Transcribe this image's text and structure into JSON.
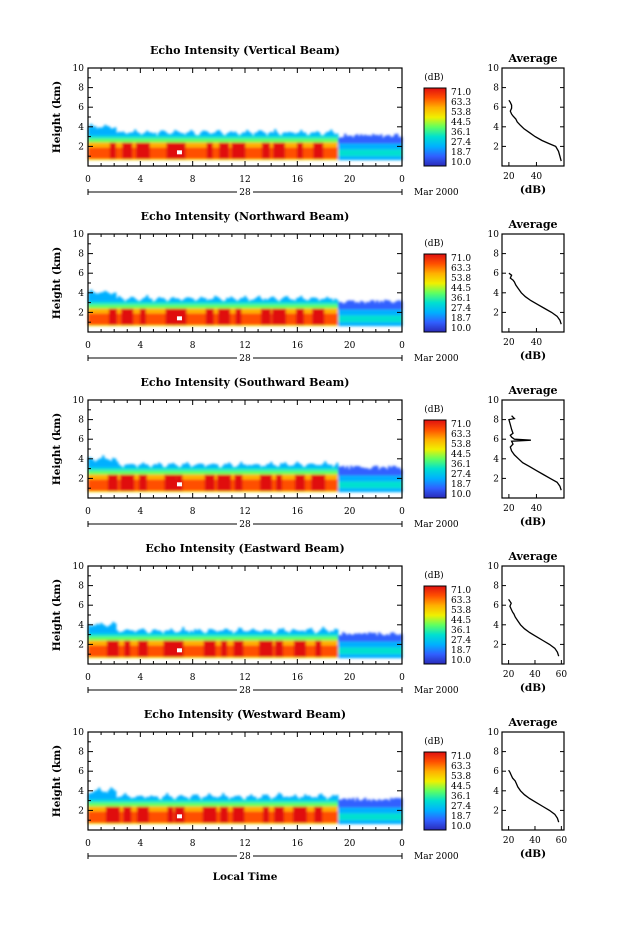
{
  "figure": {
    "xlabel": "Local Time",
    "date_label": "Mar 2000",
    "day_label": "28",
    "time_ticks": [
      "0",
      "4",
      "8",
      "12",
      "16",
      "20",
      "0"
    ]
  },
  "colors": {
    "scale": [
      "#2a2ab8",
      "#3060ff",
      "#00b0ff",
      "#00e0d0",
      "#60ff60",
      "#f0f000",
      "#ffb000",
      "#ff5000",
      "#e01010"
    ]
  },
  "chart_data": [
    {
      "type": "heatmap",
      "title": "Echo Intensity (Vertical Beam)",
      "xlabel": "",
      "ylabel": "Height (km)",
      "x_range_hours": [
        0,
        24
      ],
      "ylim": [
        0,
        10
      ],
      "y_ticks": [
        2,
        4,
        6,
        8,
        10
      ],
      "colorbar": {
        "label": "(dB)",
        "ticks": [
          "71.0",
          "63.3",
          "53.8",
          "44.5",
          "36.1",
          "27.4",
          "18.7",
          "10.0"
        ]
      },
      "average_profile": {
        "title": "Average",
        "xlabel": "(dB)",
        "x_ticks": [
          20,
          40
        ],
        "xlim": [
          15,
          60
        ],
        "ylim": [
          0,
          10
        ],
        "y_ticks": [
          2,
          4,
          6,
          8,
          10
        ],
        "points": [
          [
            58,
            0.5
          ],
          [
            57,
            1.0
          ],
          [
            56,
            1.5
          ],
          [
            54,
            2.0
          ],
          [
            49,
            2.3
          ],
          [
            44,
            2.6
          ],
          [
            39,
            3.0
          ],
          [
            35,
            3.4
          ],
          [
            31,
            3.8
          ],
          [
            28,
            4.2
          ],
          [
            26,
            4.5
          ],
          [
            25,
            4.8
          ],
          [
            23,
            5.1
          ],
          [
            22,
            5.3
          ],
          [
            21,
            5.6
          ],
          [
            22,
            5.9
          ],
          [
            22,
            6.2
          ],
          [
            21,
            6.5
          ],
          [
            20,
            6.7
          ]
        ]
      }
    },
    {
      "type": "heatmap",
      "title": "Echo Intensity (Northward Beam)",
      "xlabel": "",
      "ylabel": "Height (km)",
      "x_range_hours": [
        0,
        24
      ],
      "ylim": [
        0,
        10
      ],
      "y_ticks": [
        2,
        4,
        6,
        8,
        10
      ],
      "colorbar": {
        "label": "(dB)",
        "ticks": [
          "71.0",
          "63.3",
          "53.8",
          "44.5",
          "36.1",
          "27.4",
          "18.7",
          "10.0"
        ]
      },
      "average_profile": {
        "title": "Average",
        "xlabel": "(dB)",
        "x_ticks": [
          20,
          40
        ],
        "xlim": [
          15,
          60
        ],
        "ylim": [
          0,
          10
        ],
        "y_ticks": [
          2,
          4,
          6,
          8,
          10
        ],
        "points": [
          [
            58,
            0.8
          ],
          [
            57,
            1.2
          ],
          [
            55,
            1.6
          ],
          [
            51,
            2.0
          ],
          [
            46,
            2.4
          ],
          [
            41,
            2.8
          ],
          [
            36,
            3.2
          ],
          [
            32,
            3.6
          ],
          [
            29,
            4.0
          ],
          [
            27,
            4.4
          ],
          [
            25,
            4.8
          ],
          [
            24,
            5.1
          ],
          [
            23,
            5.3
          ],
          [
            21,
            5.5
          ],
          [
            22,
            5.8
          ],
          [
            20,
            6.0
          ]
        ]
      }
    },
    {
      "type": "heatmap",
      "title": "Echo Intensity (Southward Beam)",
      "xlabel": "",
      "ylabel": "Height (km)",
      "x_range_hours": [
        0,
        24
      ],
      "ylim": [
        0,
        10
      ],
      "y_ticks": [
        2,
        4,
        6,
        8,
        10
      ],
      "colorbar": {
        "label": "(dB)",
        "ticks": [
          "71.0",
          "63.3",
          "53.8",
          "44.5",
          "36.1",
          "27.4",
          "18.7",
          "10.0"
        ]
      },
      "average_profile": {
        "title": "Average",
        "xlabel": "(dB)",
        "x_ticks": [
          20,
          40
        ],
        "xlim": [
          15,
          60
        ],
        "ylim": [
          0,
          10
        ],
        "y_ticks": [
          2,
          4,
          6,
          8,
          10
        ],
        "points": [
          [
            58,
            0.8
          ],
          [
            57,
            1.2
          ],
          [
            55,
            1.6
          ],
          [
            50,
            2.0
          ],
          [
            45,
            2.4
          ],
          [
            40,
            2.8
          ],
          [
            35,
            3.2
          ],
          [
            30,
            3.6
          ],
          [
            27,
            4.0
          ],
          [
            24,
            4.4
          ],
          [
            22,
            4.8
          ],
          [
            21,
            5.2
          ],
          [
            23,
            5.5
          ],
          [
            22,
            5.8
          ],
          [
            36,
            5.9
          ],
          [
            24,
            6.0
          ],
          [
            22,
            6.2
          ],
          [
            21,
            6.4
          ],
          [
            23,
            6.6
          ],
          [
            22,
            7.0
          ],
          [
            21,
            7.5
          ],
          [
            20,
            8.0
          ],
          [
            24,
            8.1
          ],
          [
            22,
            8.4
          ]
        ]
      }
    },
    {
      "type": "heatmap",
      "title": "Echo Intensity (Eastward Beam)",
      "xlabel": "",
      "ylabel": "Height (km)",
      "x_range_hours": [
        0,
        24
      ],
      "ylim": [
        0,
        10
      ],
      "y_ticks": [
        2,
        4,
        6,
        8,
        10
      ],
      "colorbar": {
        "label": "(dB)",
        "ticks": [
          "71.0",
          "63.3",
          "53.8",
          "44.5",
          "36.1",
          "27.4",
          "18.7",
          "10.0"
        ]
      },
      "average_profile": {
        "title": "Average",
        "xlabel": "(dB)",
        "x_ticks": [
          20,
          40,
          60
        ],
        "xlim": [
          15,
          62
        ],
        "ylim": [
          0,
          10
        ],
        "y_ticks": [
          2,
          4,
          6,
          8,
          10
        ],
        "points": [
          [
            58,
            0.8
          ],
          [
            57,
            1.2
          ],
          [
            55,
            1.6
          ],
          [
            51,
            2.0
          ],
          [
            46,
            2.4
          ],
          [
            41,
            2.8
          ],
          [
            36,
            3.2
          ],
          [
            32,
            3.6
          ],
          [
            29,
            4.0
          ],
          [
            27,
            4.4
          ],
          [
            25,
            4.8
          ],
          [
            24,
            5.1
          ],
          [
            23,
            5.3
          ],
          [
            22,
            5.6
          ],
          [
            21,
            5.9
          ],
          [
            22,
            6.2
          ],
          [
            20,
            6.6
          ]
        ]
      }
    },
    {
      "type": "heatmap",
      "title": "Echo Intensity (Westward Beam)",
      "xlabel": "",
      "ylabel": "Height (km)",
      "x_range_hours": [
        0,
        24
      ],
      "ylim": [
        0,
        10
      ],
      "y_ticks": [
        2,
        4,
        6,
        8,
        10
      ],
      "colorbar": {
        "label": "(dB)",
        "ticks": [
          "71.0",
          "63.3",
          "53.8",
          "44.5",
          "36.1",
          "27.4",
          "18.7",
          "10.0"
        ]
      },
      "average_profile": {
        "title": "Average",
        "xlabel": "(dB)",
        "x_ticks": [
          20,
          40,
          60
        ],
        "xlim": [
          15,
          62
        ],
        "ylim": [
          0,
          10
        ],
        "y_ticks": [
          2,
          4,
          6,
          8,
          10
        ],
        "points": [
          [
            58,
            0.8
          ],
          [
            57,
            1.2
          ],
          [
            55,
            1.6
          ],
          [
            51,
            2.0
          ],
          [
            46,
            2.4
          ],
          [
            41,
            2.8
          ],
          [
            36,
            3.2
          ],
          [
            32,
            3.6
          ],
          [
            29,
            4.0
          ],
          [
            27,
            4.4
          ],
          [
            26,
            4.7
          ],
          [
            25,
            5.0
          ],
          [
            23,
            5.3
          ],
          [
            22,
            5.6
          ],
          [
            21,
            5.9
          ],
          [
            20,
            6.1
          ]
        ]
      }
    }
  ]
}
